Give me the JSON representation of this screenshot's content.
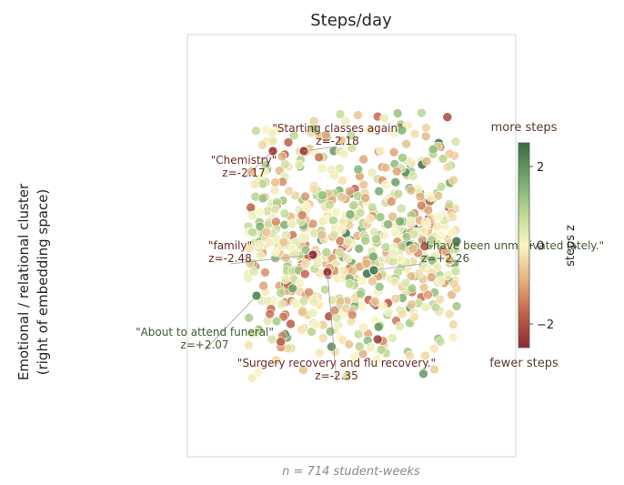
{
  "chart_data": {
    "type": "scatter",
    "title": "Steps/day",
    "ylabel_lines": [
      "Emotional / relational cluster",
      "(right of embedding space)"
    ],
    "footnote": "n = 714 student-weeks",
    "colorbar": {
      "label": "steps z",
      "ticks": [
        {
          "value": 2,
          "label": "2"
        },
        {
          "value": 0,
          "label": "0"
        },
        {
          "value": -2,
          "label": "−2"
        }
      ],
      "top_label": "more steps",
      "bottom_label": "fewer steps",
      "range": [
        -2.6,
        2.6
      ],
      "colors": [
        "#8b2a35",
        "#c4614a",
        "#e3b47e",
        "#fbf5c2",
        "#b9d68f",
        "#6fa569",
        "#3a6a45"
      ]
    },
    "n_points": 714,
    "annotations": [
      {
        "text": "\"Starting classes again\"",
        "z": "z=-2.18",
        "value": -2.18
      },
      {
        "text": "\"Chemistry\"",
        "z": "z=-2.17",
        "value": -2.17
      },
      {
        "text": "\"family\"",
        "z": "z=-2.48",
        "value": -2.48
      },
      {
        "text": "\"I have been unmotivated lately.\"",
        "z": "z=+2.26",
        "value": 2.26
      },
      {
        "text": "\"About to attend funeral\"",
        "z": "z=+2.07",
        "value": 2.07
      },
      {
        "text": "\"Surgery recovery and flu recovery.\"",
        "z": "z=-2.35",
        "value": -2.35
      }
    ]
  }
}
